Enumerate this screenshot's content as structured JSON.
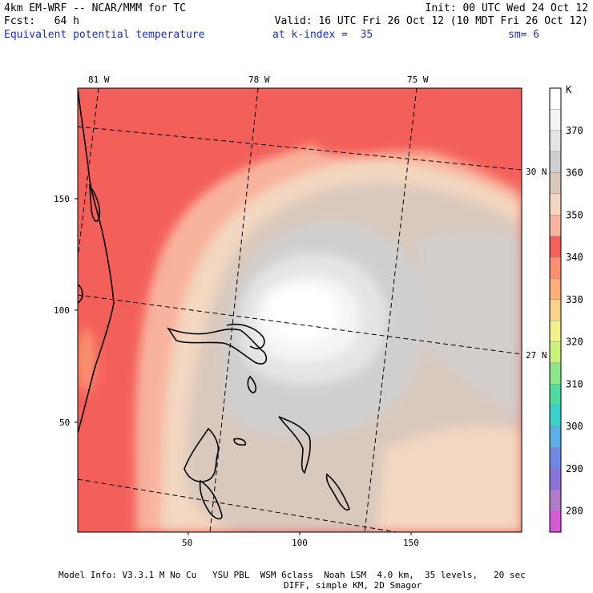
{
  "header": {
    "model": "4km EM-WRF -- NCAR/MMM for TC",
    "init": "Init: 00 UTC Wed 24 Oct 12",
    "fcst": "Fcst:   64 h",
    "valid": "Valid: 16 UTC Fri 26 Oct 12 (10 MDT Fri 26 Oct 12)",
    "field": "Equivalent potential temperature",
    "level": "at k-index =  35",
    "smoothing": "sm= 6"
  },
  "map": {
    "lon_labels": [
      "81 W",
      "78 W",
      "75 W"
    ],
    "lat_labels": [
      "30 N",
      "27 N"
    ],
    "x_ticks": [
      "50",
      "100",
      "150"
    ],
    "y_ticks": [
      "150",
      "100",
      "50"
    ]
  },
  "colorbar": {
    "unit": "K",
    "levels": [
      {
        "label": "",
        "color": "#ffffff"
      },
      {
        "label": "370",
        "color": "#f4f4f4"
      },
      {
        "label": "",
        "color": "#e4e4e4"
      },
      {
        "label": "360",
        "color": "#cfcfcf"
      },
      {
        "label": "",
        "color": "#d9c9bd"
      },
      {
        "label": "350",
        "color": "#f3d7c0"
      },
      {
        "label": "",
        "color": "#f8b39c"
      },
      {
        "label": "340",
        "color": "#f3605a"
      },
      {
        "label": "",
        "color": "#f99070"
      },
      {
        "label": "330",
        "color": "#fbb07a"
      },
      {
        "label": "",
        "color": "#fbd08a"
      },
      {
        "label": "320",
        "color": "#f3f28a"
      },
      {
        "label": "",
        "color": "#c9f27a"
      },
      {
        "label": "310",
        "color": "#8ce68a"
      },
      {
        "label": "",
        "color": "#4fdca2"
      },
      {
        "label": "300",
        "color": "#3bd0c8"
      },
      {
        "label": "",
        "color": "#5ab0e6"
      },
      {
        "label": "290",
        "color": "#6f88e6"
      },
      {
        "label": "",
        "color": "#8b74d8"
      },
      {
        "label": "280",
        "color": "#b07cc8"
      },
      {
        "label": "",
        "color": "#d65ad6"
      }
    ]
  },
  "footer": {
    "line1": "Model Info: V3.3.1 M No Cu   YSU PBL  WSM 6class  Noah LSM  4.0 km,  35 levels,   20 sec",
    "line2": "DIFF, simple KM, 2D Smagor"
  }
}
